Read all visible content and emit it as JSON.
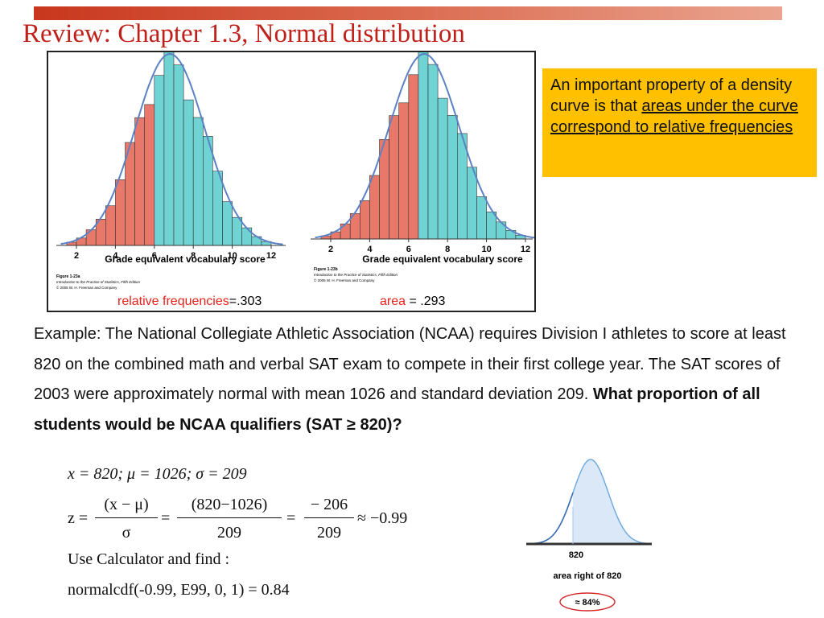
{
  "title": "Review: Chapter 1.3, Normal distribution",
  "figure": {
    "left": {
      "xlabel": "Grade equivalent vocabulary score",
      "ticks": [
        "2",
        "4",
        "6",
        "8",
        "10",
        "12"
      ],
      "credit": [
        "Figure 1-23a",
        "Introduction to the Practice of Statistics, Fifth Edition",
        "© 2005 W. H. Freeman and Company"
      ],
      "caption_label": "relative frequencies",
      "caption_value": "=.303"
    },
    "right": {
      "xlabel": "Grade equivalent vocabulary score",
      "ticks": [
        "2",
        "4",
        "6",
        "8",
        "10",
        "12"
      ],
      "credit": [
        "Figure 1-23b",
        "Introduction to the Practice of Statistics, Fifth Edition",
        "© 2005 W. H. Freeman and Company"
      ],
      "caption_label": "area",
      "caption_value": " = .293"
    },
    "colors": {
      "shaded": "#e8796a",
      "unshaded": "#6fd3d3",
      "curve": "#5b82c4"
    }
  },
  "callout": {
    "plain": "An important property of a density curve is that ",
    "underlined": "areas under the curve correspond to relative frequencies",
    "bg": "#ffc000"
  },
  "example": {
    "plain": "Example: The National Collegiate Athletic Association (NCAA) requires Division I athletes to score at least 820 on the combined math and verbal SAT exam to compete in their first college year. The SAT scores of 2003 were approximately normal with mean 1026 and standard deviation 209. ",
    "bold": "What proportion of all students would be NCAA qualifiers (SAT ≥ 820)?"
  },
  "math": {
    "line1": "x = 820; μ = 1026; σ = 209",
    "z_lhs": "z =",
    "frac1_num": "(x − μ)",
    "frac1_den": "σ",
    "eq1": "=",
    "frac2_num": "(820−1026)",
    "frac2_den": "209",
    "eq2": "=",
    "frac3_num": "− 206",
    "frac3_den": "209",
    "approx": "≈ −0.99",
    "line3": "Use Calculator and find :",
    "line4": "normalcdf(-0.99, E99, 0, 1) = 0.84"
  },
  "mini_curve": {
    "tick_label": "820",
    "caption": "area right of 820",
    "result": "≈ 84%"
  }
}
